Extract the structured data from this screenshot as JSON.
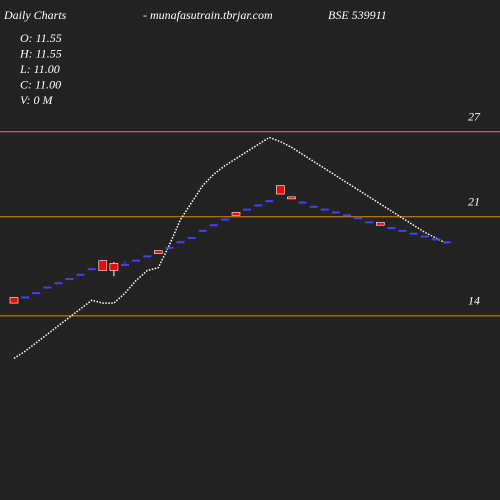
{
  "chart_data": {
    "type": "candlestick",
    "title": "Daily Charts",
    "subtitle": "- munafasutrain.tbrjar.com",
    "symbol": "BSE 539911",
    "info": [
      "O: 11.55",
      "H: 11.55",
      "L: 11.00",
      "C: 11.00",
      "V: 0  M"
    ],
    "open": [
      15.3,
      15.3,
      15.6,
      16.0,
      16.3,
      16.6,
      16.9,
      17.3,
      17.9,
      17.7,
      17.6,
      17.9,
      18.2,
      18.6,
      18.8,
      19.2,
      19.5,
      20.0,
      20.4,
      20.8,
      21.3,
      21.5,
      21.8,
      22.1,
      23.2,
      22.4,
      22.0,
      21.7,
      21.5,
      21.3,
      21.1,
      20.9,
      20.6,
      20.6,
      20.2,
      20.0,
      19.8,
      19.6,
      19.4,
      19.2
    ],
    "high": [
      15.3,
      15.3,
      15.6,
      16.0,
      16.3,
      16.6,
      16.9,
      17.3,
      17.9,
      17.8,
      17.9,
      17.9,
      18.2,
      18.6,
      18.8,
      19.2,
      19.5,
      20.0,
      20.4,
      20.8,
      21.3,
      21.5,
      21.8,
      22.1,
      23.2,
      22.4,
      22.0,
      21.7,
      21.5,
      21.3,
      21.1,
      20.9,
      20.6,
      20.6,
      20.2,
      20.0,
      19.8,
      19.6,
      19.4,
      19.2
    ],
    "low": [
      14.9,
      15.3,
      15.6,
      16.0,
      16.3,
      16.6,
      16.9,
      17.3,
      17.2,
      16.8,
      17.6,
      17.9,
      18.2,
      18.4,
      18.8,
      19.2,
      19.5,
      20.0,
      20.4,
      20.8,
      21.1,
      21.5,
      21.8,
      22.1,
      22.6,
      22.3,
      22.0,
      21.7,
      21.5,
      21.3,
      21.1,
      20.9,
      20.6,
      20.4,
      20.2,
      20.0,
      19.8,
      19.6,
      19.4,
      19.2
    ],
    "close": [
      14.9,
      15.3,
      15.6,
      16.0,
      16.3,
      16.6,
      16.9,
      17.3,
      17.2,
      17.2,
      17.6,
      17.9,
      18.2,
      18.4,
      18.8,
      19.2,
      19.5,
      20.0,
      20.4,
      20.8,
      21.1,
      21.5,
      21.8,
      22.1,
      22.6,
      22.3,
      22.0,
      21.7,
      21.5,
      21.3,
      21.1,
      20.9,
      20.6,
      20.4,
      20.2,
      20.0,
      19.8,
      19.6,
      19.4,
      19.2
    ],
    "line": [
      11.0,
      11.5,
      12.1,
      12.7,
      13.3,
      13.9,
      14.5,
      15.1,
      14.9,
      14.9,
      15.6,
      16.5,
      17.2,
      17.4,
      19.0,
      20.8,
      22.0,
      23.2,
      24.0,
      24.6,
      25.1,
      25.6,
      26.1,
      26.6,
      26.3,
      25.9,
      25.4,
      24.9,
      24.4,
      23.9,
      23.4,
      22.9,
      22.4,
      21.9,
      21.4,
      20.9,
      20.4,
      19.9,
      19.5,
      19.1
    ],
    "up_color": "#4040ff",
    "down_color": "#ff0000",
    "line_color": "#ffffff",
    "grid_color": "#e08a00",
    "ylim": [
      1,
      36.3
    ],
    "yticks": [
      14,
      21,
      27
    ],
    "grid": true
  }
}
